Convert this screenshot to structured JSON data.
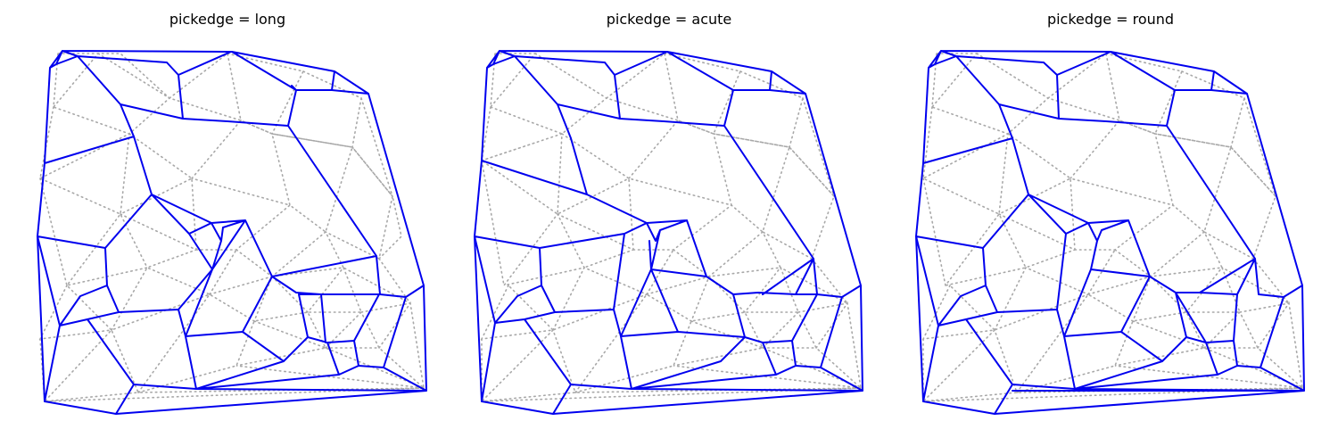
{
  "panels": [
    {
      "title": "pickedge = long"
    },
    {
      "title": "pickedge = acute"
    },
    {
      "title": "pickedge = round"
    }
  ],
  "colors": {
    "dual_edges": "#0000ee",
    "triangulation": "#a8a8a8",
    "background": "#ffffff"
  }
}
